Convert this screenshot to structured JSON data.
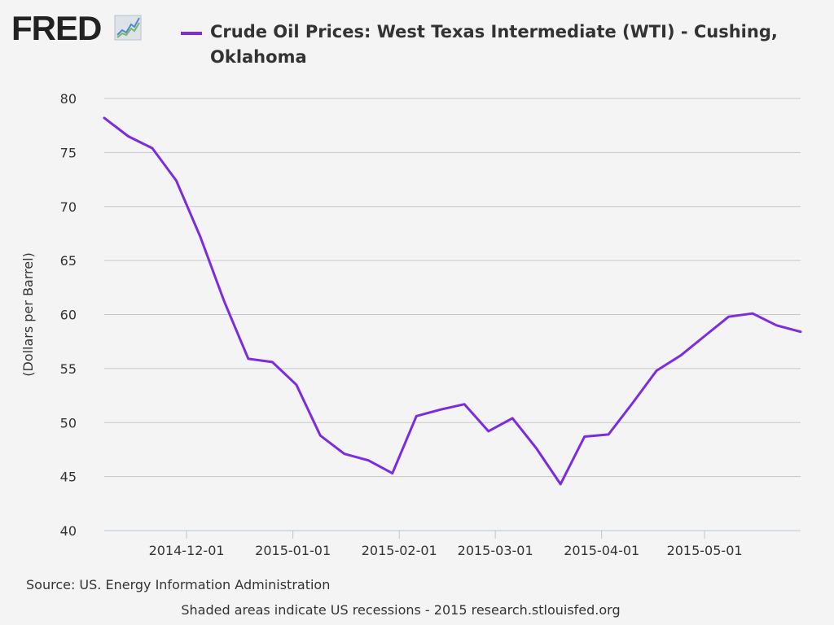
{
  "logo": {
    "text": "FRED",
    "icon": "fred-trend-chart-icon"
  },
  "chart_data": {
    "type": "line",
    "title": "Crude Oil Prices: West Texas Intermediate (WTI) - Cushing, Oklahoma",
    "xlabel": "",
    "ylabel": "(Dollars per Barrel)",
    "ylim": [
      40,
      80
    ],
    "xlim": [
      "2014-11-07",
      "2015-05-29"
    ],
    "yticks": [
      40,
      45,
      50,
      55,
      60,
      65,
      70,
      75,
      80
    ],
    "xticks": [
      "2014-12-01",
      "2015-01-01",
      "2015-02-01",
      "2015-03-01",
      "2015-04-01",
      "2015-05-01"
    ],
    "grid": true,
    "legend": "top",
    "series": [
      {
        "name": "Crude Oil Prices: West Texas Intermediate (WTI) - Cushing, Oklahoma",
        "color": "#7b2be2",
        "x": [
          "2014-11-07",
          "2014-11-14",
          "2014-11-21",
          "2014-11-28",
          "2014-12-05",
          "2014-12-12",
          "2014-12-19",
          "2014-12-26",
          "2015-01-02",
          "2015-01-09",
          "2015-01-16",
          "2015-01-23",
          "2015-01-30",
          "2015-02-06",
          "2015-02-13",
          "2015-02-20",
          "2015-02-27",
          "2015-03-06",
          "2015-03-13",
          "2015-03-20",
          "2015-03-27",
          "2015-04-03",
          "2015-04-10",
          "2015-04-17",
          "2015-04-24",
          "2015-05-01",
          "2015-05-08",
          "2015-05-15",
          "2015-05-22",
          "2015-05-29"
        ],
        "y": [
          78.2,
          76.5,
          75.4,
          72.4,
          67.2,
          61.2,
          55.9,
          55.6,
          53.5,
          48.8,
          47.1,
          46.5,
          45.3,
          50.6,
          51.2,
          51.7,
          49.2,
          50.4,
          47.6,
          44.3,
          48.7,
          48.9,
          51.8,
          54.8,
          56.2,
          58.0,
          59.8,
          60.1,
          59.0,
          58.4
        ]
      }
    ]
  },
  "source": "Source: US. Energy Information Administration",
  "footer": "Shaded areas indicate US recessions - 2015 research.stlouisfed.org"
}
